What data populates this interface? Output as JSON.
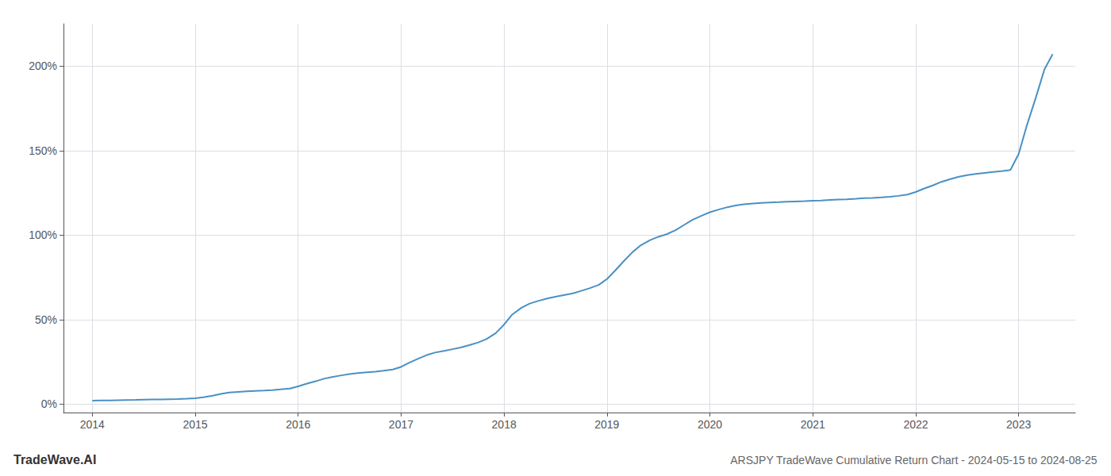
{
  "chart_data": {
    "type": "line",
    "title": "ARSJPY TradeWave Cumulative Return Chart - 2024-05-15 to 2024-08-25",
    "annotations": [
      "TradeWave.AI"
    ],
    "color": "#4a90c4",
    "x": [
      2014.0,
      2014.08,
      2014.17,
      2014.25,
      2014.33,
      2014.42,
      2014.5,
      2014.58,
      2014.67,
      2014.75,
      2014.83,
      2014.92,
      2015.0,
      2015.08,
      2015.17,
      2015.25,
      2015.33,
      2015.42,
      2015.5,
      2015.58,
      2015.67,
      2015.75,
      2015.83,
      2015.92,
      2016.0,
      2016.08,
      2016.17,
      2016.25,
      2016.33,
      2016.42,
      2016.5,
      2016.58,
      2016.67,
      2016.75,
      2016.83,
      2016.92,
      2017.0,
      2017.08,
      2017.17,
      2017.25,
      2017.33,
      2017.42,
      2017.5,
      2017.58,
      2017.67,
      2017.75,
      2017.83,
      2017.92,
      2018.0,
      2018.08,
      2018.17,
      2018.25,
      2018.33,
      2018.42,
      2018.5,
      2018.58,
      2018.67,
      2018.75,
      2018.83,
      2018.92,
      2019.0,
      2019.08,
      2019.17,
      2019.25,
      2019.33,
      2019.42,
      2019.5,
      2019.58,
      2019.67,
      2019.75,
      2019.83,
      2019.92,
      2020.0,
      2020.08,
      2020.17,
      2020.25,
      2020.33,
      2020.42,
      2020.5,
      2020.58,
      2020.67,
      2020.75,
      2020.83,
      2020.92,
      2021.0,
      2021.08,
      2021.17,
      2021.25,
      2021.33,
      2021.42,
      2021.5,
      2021.58,
      2021.67,
      2021.75,
      2021.83,
      2021.92,
      2022.0,
      2022.08,
      2022.17,
      2022.25,
      2022.33,
      2022.42,
      2022.5,
      2022.58,
      2022.67,
      2022.75,
      2022.83,
      2022.92,
      2023.0,
      2023.08,
      2023.17,
      2023.25,
      2023.33
    ],
    "values": [
      2.0,
      2.1,
      2.2,
      2.3,
      2.4,
      2.5,
      2.6,
      2.7,
      2.8,
      2.9,
      3.0,
      3.2,
      3.5,
      4.0,
      5.0,
      6.0,
      6.8,
      7.2,
      7.5,
      7.8,
      8.0,
      8.3,
      8.7,
      9.2,
      10.5,
      12.0,
      13.5,
      15.0,
      16.0,
      17.0,
      17.8,
      18.3,
      18.8,
      19.2,
      19.8,
      20.5,
      22.0,
      24.5,
      27.0,
      29.0,
      30.5,
      31.5,
      32.5,
      33.5,
      35.0,
      36.5,
      38.5,
      42.0,
      47.0,
      53.0,
      57.0,
      59.5,
      61.0,
      62.5,
      63.5,
      64.5,
      65.5,
      67.0,
      68.5,
      70.5,
      74.0,
      79.0,
      85.0,
      90.0,
      94.0,
      97.0,
      99.0,
      100.5,
      103.0,
      106.0,
      109.0,
      111.5,
      113.5,
      115.0,
      116.5,
      117.5,
      118.2,
      118.7,
      119.0,
      119.3,
      119.5,
      119.7,
      119.9,
      120.1,
      120.3,
      120.5,
      120.8,
      121.0,
      121.2,
      121.5,
      121.8,
      122.0,
      122.3,
      122.7,
      123.2,
      124.0,
      125.5,
      127.5,
      129.5,
      131.5,
      133.0,
      134.5,
      135.5,
      136.2,
      136.8,
      137.3,
      137.8,
      138.5,
      148.0,
      165.0,
      182.0,
      198.0,
      207.0
    ],
    "xlim": [
      2013.72,
      2023.55
    ],
    "ylim": [
      -5,
      225
    ],
    "xticks": [
      2014,
      2015,
      2016,
      2017,
      2018,
      2019,
      2020,
      2021,
      2022,
      2023
    ],
    "yticks": [
      {
        "value": 0,
        "label": "0%"
      },
      {
        "value": 50,
        "label": "50%"
      },
      {
        "value": 100,
        "label": "100%"
      },
      {
        "value": 150,
        "label": "150%"
      },
      {
        "value": 200,
        "label": "200%"
      }
    ],
    "grid": true
  }
}
